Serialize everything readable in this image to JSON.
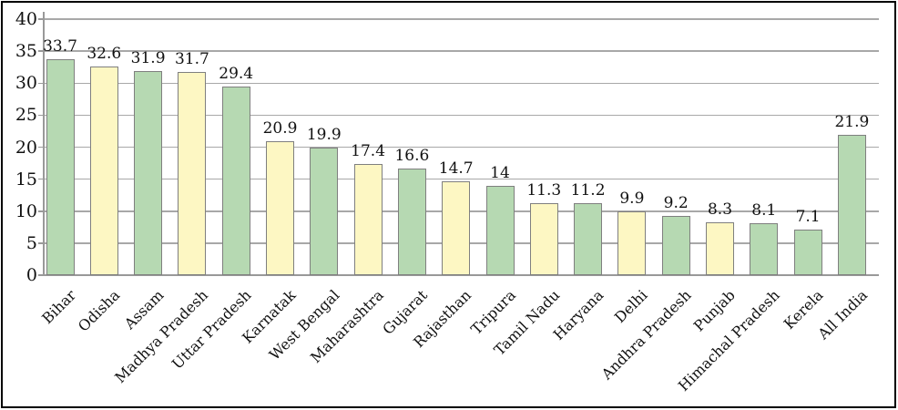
{
  "chart_data": {
    "type": "bar",
    "title": "",
    "xlabel": "",
    "ylabel": "",
    "categories": [
      "Bihar",
      "Odisha",
      "Assam",
      "Madhya Pradesh",
      "Uttar Pradesh",
      "Karnatak",
      "West Bengal",
      "Maharashtra",
      "Gujarat",
      "Rajasthan",
      "Tripura",
      "Tamil Nadu",
      "Haryana",
      "Delhi",
      "Andhra Pradesh",
      "Punjab",
      "Himachal Pradesh",
      "Kerela",
      "All India"
    ],
    "values": [
      33.7,
      32.6,
      31.9,
      31.7,
      29.4,
      20.9,
      19.9,
      17.4,
      16.6,
      14.7,
      14,
      11.3,
      11.2,
      9.9,
      9.2,
      8.3,
      8.1,
      7.1,
      21.9
    ],
    "value_labels": [
      "33.7",
      "32.6",
      "31.9",
      "31.7",
      "29.4",
      "20.9",
      "19.9",
      "17.4",
      "16.6",
      "14.7",
      "14",
      "11.3",
      "11.2",
      "9.9",
      "9.2",
      "8.3",
      "8.1",
      "7.1",
      "21.9"
    ],
    "bar_colors": [
      "#b6d9b2",
      "#fdf7c3",
      "#b6d9b2",
      "#fdf7c3",
      "#b6d9b2",
      "#fdf7c3",
      "#b6d9b2",
      "#fdf7c3",
      "#b6d9b2",
      "#fdf7c3",
      "#b6d9b2",
      "#fdf7c3",
      "#b6d9b2",
      "#fdf7c3",
      "#b6d9b2",
      "#fdf7c3",
      "#b6d9b2",
      "#b6d9b2",
      "#b6d9b2"
    ],
    "ylim": [
      0,
      40
    ],
    "ytick_step": 5,
    "ytick_labels": [
      "0",
      "5",
      "10",
      "15",
      "20",
      "25",
      "30",
      "35",
      "40"
    ],
    "grid": true,
    "legend": false,
    "x_labels_rotation_deg": 45
  },
  "colors": {
    "green_bar": "#b6d9b2",
    "yellow_bar": "#fdf7c3",
    "bar_border": "#7f7f7f",
    "gridline": "#a8a8a8",
    "baseline": "#999999",
    "text": "#111111",
    "frame_border": "#000000",
    "background": "#ffffff"
  }
}
